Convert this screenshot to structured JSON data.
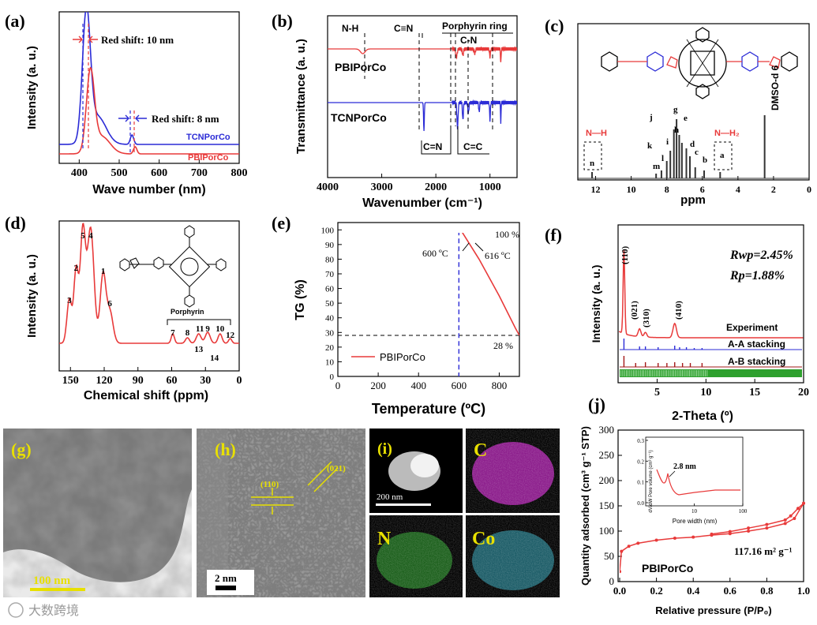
{
  "watermark": "大数跨境",
  "panels": {
    "a": {
      "label": "(a)",
      "shift1": "Red shift: 10 nm",
      "shift2": "Red shift: 8 nm"
    },
    "b": {
      "label": "(b)"
    },
    "c": {
      "label": "(c)",
      "n_label": "n",
      "a_label": "a"
    },
    "d": {
      "label": "(d)",
      "porphyrin": "Porphyrin"
    },
    "e": {
      "label": "(e)",
      "t1": "600 ºC",
      "t2": "616 ºC",
      "p100": "100 %",
      "p28": "28 %"
    },
    "f": {
      "label": "(f)",
      "rwp": "Rwp=2.45%",
      "rp": "Rp=1.88%"
    },
    "g": {
      "label": "(g)",
      "scale": "100 nm"
    },
    "h": {
      "label": "(h)",
      "scale": "2 nm",
      "plane1": "(110)",
      "plane2": "(021)"
    },
    "i": {
      "label": "(i)",
      "scale": "200 nm",
      "maps": [
        "C",
        "N",
        "Co"
      ]
    },
    "j": {
      "label": "(j)",
      "area": "117.16 m² g⁻¹",
      "sample": "PBIPorCo",
      "pore": "2.8 nm"
    }
  },
  "chart_data": [
    {
      "id": "a",
      "type": "line",
      "xlabel": "Wave number (nm)",
      "ylabel": "Intensity (a. u.)",
      "xlim": [
        350,
        800
      ],
      "xticks": [
        400,
        500,
        600,
        700,
        800
      ],
      "series": [
        {
          "name": "TCNPorCo",
          "color": "#2b2bd6",
          "peaks": [
            418,
            532
          ]
        },
        {
          "name": "PBIPorCo",
          "color": "#e83a3a",
          "peaks": [
            428,
            540
          ]
        }
      ]
    },
    {
      "id": "b",
      "type": "line",
      "xlabel": "Wavenumber (cm⁻¹)",
      "ylabel": "Transmittance (a. u.)",
      "xlim": [
        4000,
        500
      ],
      "xticks": [
        4000,
        3000,
        2000,
        1000
      ],
      "annotations": [
        "N-H",
        "C≡N",
        "Porphyrin ring",
        "C-N",
        "C=N",
        "C=C"
      ],
      "series": [
        {
          "name": "PBIPorCo",
          "color": "#e83a3a"
        },
        {
          "name": "TCNPorCo",
          "color": "#2b2bd6"
        }
      ]
    },
    {
      "id": "c",
      "type": "line",
      "xlabel": "ppm",
      "xlim": [
        13,
        0
      ],
      "xticks": [
        12,
        10,
        8,
        6,
        4,
        2,
        0
      ],
      "annotations": [
        "N—H",
        "N—H₂",
        "DMSO-d 6",
        "j",
        "k",
        "l",
        "m",
        "i",
        "h",
        "g",
        "e",
        "d",
        "c",
        "b"
      ]
    },
    {
      "id": "d",
      "type": "line",
      "xlabel": "Chemical shift (ppm)",
      "ylabel": "Intensity (a. u.)",
      "xlim": [
        160,
        0
      ],
      "xticks": [
        150,
        120,
        90,
        60,
        30,
        0
      ],
      "peak_labels": [
        {
          "t": "5",
          "x": 139
        },
        {
          "t": "4",
          "x": 132
        },
        {
          "t": "2",
          "x": 145
        },
        {
          "t": "1",
          "x": 121
        },
        {
          "t": "3",
          "x": 151
        },
        {
          "t": "6",
          "x": 115
        },
        {
          "t": "7",
          "x": 59
        },
        {
          "t": "8",
          "x": 46
        },
        {
          "t": "11",
          "x": 35
        },
        {
          "t": "9",
          "x": 28
        },
        {
          "t": "10",
          "x": 17
        },
        {
          "t": "12",
          "x": 8
        },
        {
          "t": "13",
          "x": 36
        },
        {
          "t": "14",
          "x": 22
        }
      ]
    },
    {
      "id": "e",
      "type": "line",
      "xlabel": "Temperature (ºC)",
      "ylabel": "TG (%)",
      "xlim": [
        0,
        900
      ],
      "ylim": [
        0,
        105
      ],
      "xticks": [
        0,
        200,
        400,
        600,
        800
      ],
      "yticks": [
        0,
        10,
        20,
        30,
        40,
        50,
        60,
        70,
        80,
        90,
        100
      ],
      "legend": "PBIPorCo",
      "x": [
        0,
        300,
        600,
        616,
        700,
        800,
        880,
        900
      ],
      "y": [
        100,
        100,
        99.5,
        98.5,
        80,
        55,
        33,
        28
      ]
    },
    {
      "id": "f",
      "type": "line",
      "xlabel": "2-Theta (º)",
      "ylabel": "Intensity (a. u.)",
      "xlim": [
        1,
        20
      ],
      "xticks": [
        5,
        10,
        15,
        20
      ],
      "peaks": [
        "(110)",
        "(021)",
        "(310)",
        "(410)"
      ],
      "series": [
        {
          "name": "Experiment",
          "color": "#e83a3a"
        },
        {
          "name": "A-A stacking",
          "color": "#2b2bd6"
        },
        {
          "name": "A-B stacking",
          "color": "#a31818"
        }
      ]
    },
    {
      "id": "j",
      "type": "line",
      "xlabel": "Relative pressure (P/P₀)",
      "ylabel": "Quantity adsorbed (cm³ g⁻¹ STP)",
      "xlim": [
        0,
        1
      ],
      "ylim": [
        0,
        300
      ],
      "xticks": [
        0.0,
        0.2,
        0.4,
        0.6,
        0.8,
        1.0
      ],
      "yticks": [
        0,
        50,
        100,
        150,
        200,
        250,
        300
      ],
      "inset": {
        "xlabel": "Pore width (nm)",
        "ylabel": "dV/dW Pore volume (cm³ g⁻¹)",
        "yticks": [
          0.0,
          0.1,
          0.2,
          0.3
        ],
        "xticks": [
          10,
          100
        ]
      },
      "adsorption": {
        "x": [
          0,
          0.01,
          0.05,
          0.1,
          0.2,
          0.3,
          0.4,
          0.5,
          0.6,
          0.7,
          0.8,
          0.9,
          0.95,
          1.0
        ],
        "y": [
          20,
          60,
          70,
          76,
          82,
          86,
          88,
          92,
          95,
          100,
          106,
          115,
          125,
          155
        ]
      },
      "desorption": {
        "x": [
          1.0,
          0.97,
          0.93,
          0.9,
          0.8,
          0.7,
          0.6,
          0.5
        ],
        "y": [
          155,
          145,
          130,
          122,
          113,
          106,
          99,
          94
        ]
      }
    }
  ]
}
